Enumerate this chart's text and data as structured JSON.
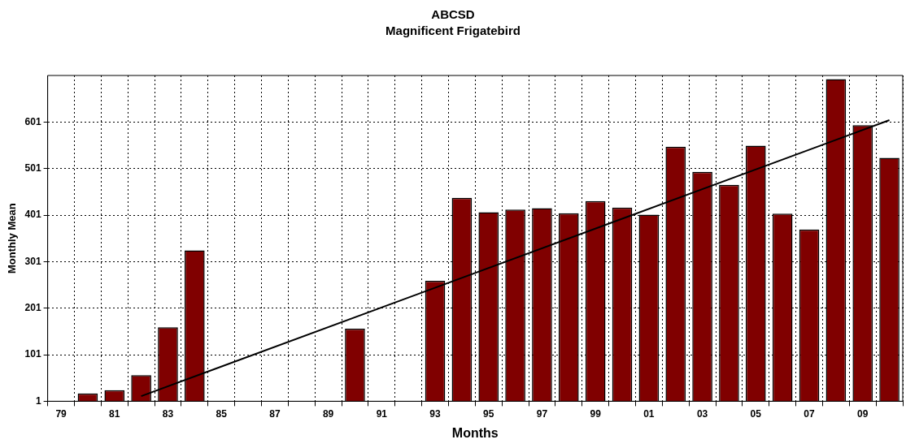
{
  "chart_data": {
    "type": "bar",
    "title": "ABCSD",
    "subtitle": "Magnificent Frigatebird",
    "xlabel": "Months",
    "ylabel": "Monthly Mean",
    "categories": [
      "79",
      null,
      "81",
      null,
      "83",
      null,
      "85",
      null,
      "87",
      null,
      "89",
      null,
      "91",
      null,
      "93",
      null,
      "95",
      null,
      "97",
      null,
      "99",
      null,
      "01",
      null,
      "03",
      null,
      "05",
      null,
      "07",
      null,
      "09",
      null
    ],
    "series": [
      {
        "type": "bar",
        "color": "#800000",
        "values": [
          null,
          18,
          25,
          57,
          160,
          325,
          null,
          null,
          null,
          null,
          null,
          157,
          null,
          null,
          260,
          438,
          407,
          413,
          416,
          405,
          431,
          417,
          402,
          548,
          494,
          466,
          550,
          404,
          370,
          693,
          594,
          524
        ]
      },
      {
        "type": "line",
        "color": "#000000",
        "values": [
          null,
          null,
          null,
          12,
          null,
          null,
          null,
          null,
          null,
          null,
          null,
          null,
          null,
          null,
          null,
          null,
          null,
          null,
          null,
          null,
          null,
          null,
          null,
          null,
          null,
          null,
          null,
          null,
          null,
          null,
          null,
          605
        ]
      }
    ],
    "ylim": [
      1,
      701
    ],
    "yticks": [
      1,
      101,
      201,
      301,
      401,
      501,
      601
    ],
    "grid": true,
    "legend": false,
    "marker": "none",
    "line_style": "solid"
  }
}
